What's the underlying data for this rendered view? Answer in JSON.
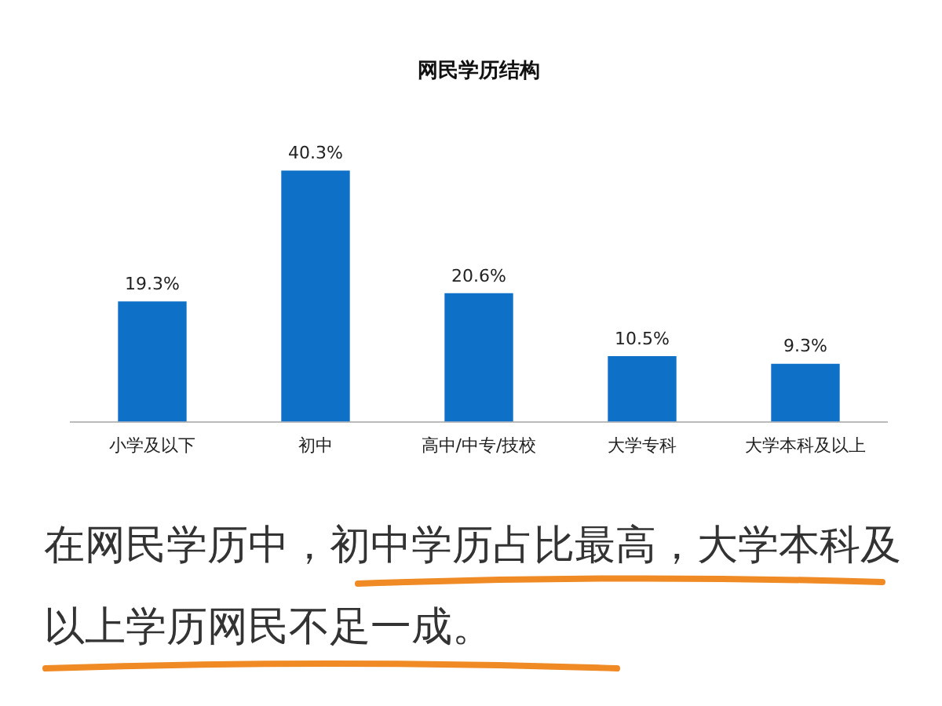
{
  "chart_data": {
    "type": "bar",
    "title": "网民学历结构",
    "categories": [
      "小学及以下",
      "初中",
      "高中/中专/技校",
      "大学专科",
      "大学本科及以上"
    ],
    "values": [
      19.3,
      40.3,
      20.6,
      10.5,
      9.3
    ],
    "value_labels": [
      "19.3%",
      "40.3%",
      "20.6%",
      "10.5%",
      "9.3%"
    ],
    "color": "#0e70c6",
    "tick_labels": "x",
    "grid": false,
    "legend": false,
    "annotations": [
      "在网民学历中，初中学历占比最高，大学本科及以上学历网民不足一成。"
    ]
  }
}
